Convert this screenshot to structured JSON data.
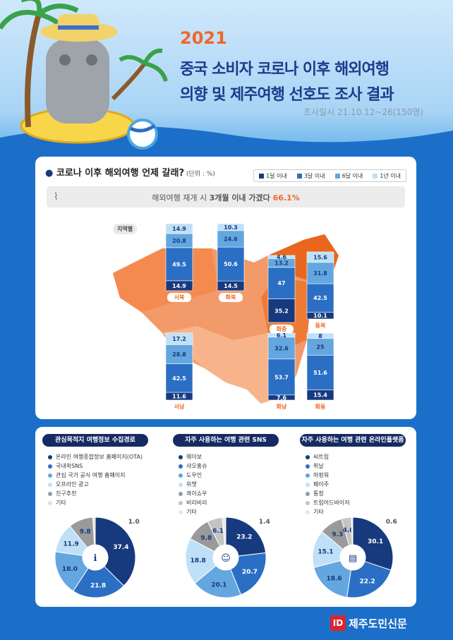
{
  "header": {
    "year": "2021",
    "title_line1": "중국 소비자 코로나 이후 해외여행",
    "title_line2": "의향 및 제주여행 선호도 조사 결과",
    "survey_date": "조사일시 21.10.12~26(150명)"
  },
  "colors": {
    "c1": "#173a7e",
    "c2": "#2a6fc3",
    "c3": "#63a6e0",
    "c4": "#bfe0f6",
    "orange": "#f26a22",
    "hl": "#f0672a"
  },
  "question": {
    "title": "코로나 이후 해외여행 언제 갈래?",
    "unit": "(단위 : %)"
  },
  "legend": [
    "1달 이내",
    "3달 이내",
    "6달 이내",
    "1년 이내"
  ],
  "banner": {
    "text": "해외여행 재개 시 ",
    "bold": "3개월 이내 가겠다 ",
    "pct": "66.1%"
  },
  "region_tag": "지역별",
  "chart_data": {
    "type": "stacked-bar",
    "series_names": [
      "1달 이내",
      "3달 이내",
      "6달 이내",
      "1년 이내"
    ],
    "regions": [
      {
        "name": "서북",
        "values": [
          14.9,
          49.5,
          20.8,
          14.9
        ]
      },
      {
        "name": "화북",
        "values": [
          14.5,
          50.6,
          24.6,
          10.3
        ]
      },
      {
        "name": "화중",
        "values": [
          35.2,
          47.0,
          13.2,
          4.6
        ]
      },
      {
        "name": "동북",
        "values": [
          10.1,
          42.5,
          31.8,
          15.6
        ]
      },
      {
        "name": "서남",
        "values": [
          11.6,
          42.5,
          28.8,
          17.2
        ]
      },
      {
        "name": "화남",
        "values": [
          7.6,
          53.7,
          32.6,
          6.1
        ]
      },
      {
        "name": "화동",
        "values": [
          15.4,
          51.6,
          25.0,
          8.0
        ]
      }
    ]
  },
  "pies": [
    {
      "title": "관심목적지 여행정보 수집경로",
      "labels": [
        "온라인 여행종합정보 홈페이지(OTA)",
        "국내외SNS",
        "관심 국가 공식 여행 홈페이지",
        "오프라인 광고",
        "친구추천",
        "기타"
      ],
      "values": [
        37.4,
        21.8,
        18.0,
        11.9,
        9.8,
        1.0
      ],
      "colors": [
        "#173a7e",
        "#2a6fc3",
        "#63a6e0",
        "#bfe0f6",
        "#9a9a9a",
        "#e0e0e0"
      ],
      "center_icon": "info-icon"
    },
    {
      "title": "자주 사용하는 여행 관련 SNS",
      "labels": [
        "웨이보",
        "샤오홍슈",
        "도우인",
        "위챗",
        "콰이쇼우",
        "비리비리",
        "기타"
      ],
      "values": [
        23.2,
        20.7,
        20.1,
        18.8,
        9.8,
        6.1,
        1.4
      ],
      "colors": [
        "#173a7e",
        "#2a6fc3",
        "#63a6e0",
        "#bfe0f6",
        "#9a9a9a",
        "#c4c4c4",
        "#e8e8e8"
      ],
      "center_icon": "people-icon"
    },
    {
      "title": "자주 사용하는 여행 관련 온라인플랫폼",
      "labels": [
        "씨트립",
        "취날",
        "마펑워",
        "페이주",
        "통청",
        "트립어드바이저",
        "기타"
      ],
      "values": [
        30.1,
        22.2,
        18.6,
        15.1,
        9.3,
        4.0,
        0.6
      ],
      "colors": [
        "#173a7e",
        "#2a6fc3",
        "#63a6e0",
        "#bfe0f6",
        "#9a9a9a",
        "#c4c4c4",
        "#e8e8e8"
      ],
      "center_icon": "browser-icon"
    }
  ],
  "footer": {
    "logo_mark": "ID",
    "name": "제주도민신문"
  }
}
